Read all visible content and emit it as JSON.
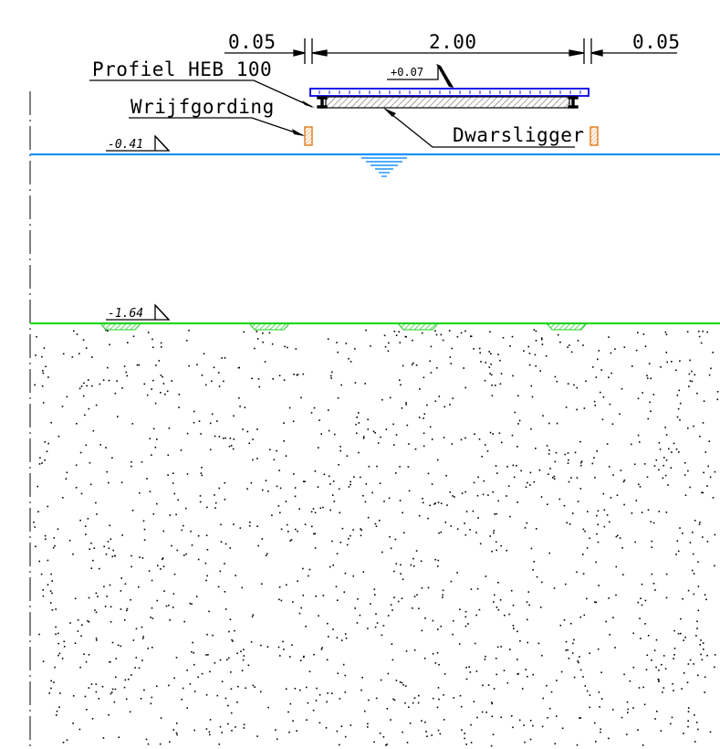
{
  "dimensions": {
    "left_gap": "0.05",
    "span": "2.00",
    "right_gap": "0.05"
  },
  "labels": {
    "profile": "Profiel HEB 100",
    "rub_rail": "Wrijfgording",
    "cross_beam": "Dwarsligger",
    "deck_level": "+0.07"
  },
  "levels": {
    "water": "-0.41",
    "bed": "-1.64"
  },
  "colors": {
    "water_line": "#1e90ff",
    "bed_line": "#22dd22",
    "deck_outline": "#1a1aee",
    "rub_rail": "#e07b1a",
    "ink": "#000000"
  }
}
